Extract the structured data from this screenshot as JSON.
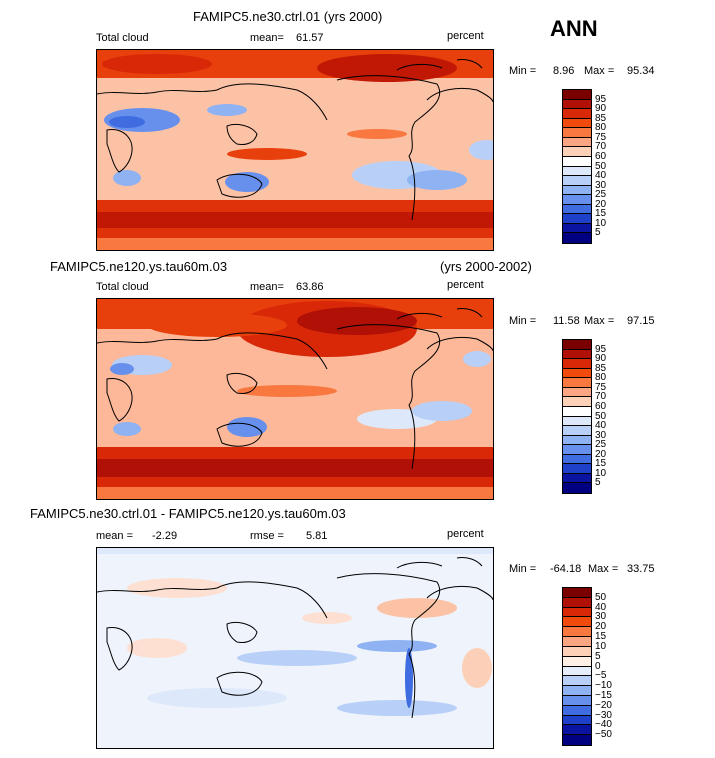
{
  "header": {
    "season": "ANN"
  },
  "panels": [
    {
      "case_title": "FAMIPC5.ne30.ctrl.01 (yrs 2000)",
      "case_title_right": "",
      "variable": "Total cloud",
      "stat1_label": "mean=",
      "stat1_value": "61.57",
      "stat2_label": "",
      "stat2_value": "",
      "units": "percent",
      "min_label": "Min =",
      "min_value": "8.96",
      "max_label": "Max =",
      "max_value": "95.34",
      "colorbar": {
        "labels": [
          "95",
          "90",
          "85",
          "80",
          "75",
          "70",
          "60",
          "50",
          "40",
          "30",
          "25",
          "20",
          "15",
          "10",
          "5"
        ],
        "colors": [
          "#7a0000",
          "#b01005",
          "#d82808",
          "#f04a0c",
          "#f87840",
          "#fca582",
          "#fdd0b8",
          "#ffffff",
          "#dde8fb",
          "#b8d0f8",
          "#8fb2f2",
          "#6690ec",
          "#3f6ce0",
          "#1f40c8",
          "#0a14a0",
          "#000080"
        ]
      }
    },
    {
      "case_title": "FAMIPC5.ne120.ys.tau60m.03",
      "case_title_right": "(yrs 2000-2002)",
      "variable": "Total cloud",
      "stat1_label": "mean=",
      "stat1_value": "63.86",
      "stat2_label": "",
      "stat2_value": "",
      "units": "percent",
      "min_label": "Min =",
      "min_value": "11.58",
      "max_label": "Max =",
      "max_value": "97.15",
      "colorbar": {
        "labels": [
          "95",
          "90",
          "85",
          "80",
          "75",
          "70",
          "60",
          "50",
          "40",
          "30",
          "25",
          "20",
          "15",
          "10",
          "5"
        ],
        "colors": [
          "#7a0000",
          "#b01005",
          "#d82808",
          "#f04a0c",
          "#f87840",
          "#fca582",
          "#fdd0b8",
          "#ffffff",
          "#dde8fb",
          "#b8d0f8",
          "#8fb2f2",
          "#6690ec",
          "#3f6ce0",
          "#1f40c8",
          "#0a14a0",
          "#000080"
        ]
      }
    },
    {
      "case_title": "FAMIPC5.ne30.ctrl.01 - FAMIPC5.ne120.ys.tau60m.03",
      "case_title_right": "",
      "variable": "",
      "stat1_label": "mean =",
      "stat1_value": "-2.29",
      "stat2_label": "rmse =",
      "stat2_value": "5.81",
      "units": "percent",
      "min_label": "Min =",
      "min_value": "-64.18",
      "max_label": "Max =",
      "max_value": "33.75",
      "colorbar": {
        "labels": [
          "50",
          "40",
          "30",
          "20",
          "15",
          "10",
          "5",
          "0",
          "−5",
          "−10",
          "−15",
          "−20",
          "−30",
          "−40",
          "−50"
        ],
        "colors": [
          "#7a0000",
          "#b01005",
          "#d82808",
          "#f04a0c",
          "#f87840",
          "#fca582",
          "#fdd0b8",
          "#fff0e6",
          "#e6eefc",
          "#b8d0f8",
          "#8fb2f2",
          "#6690ec",
          "#3f6ce0",
          "#1f40c8",
          "#0a14a0",
          "#000080"
        ]
      }
    }
  ]
}
